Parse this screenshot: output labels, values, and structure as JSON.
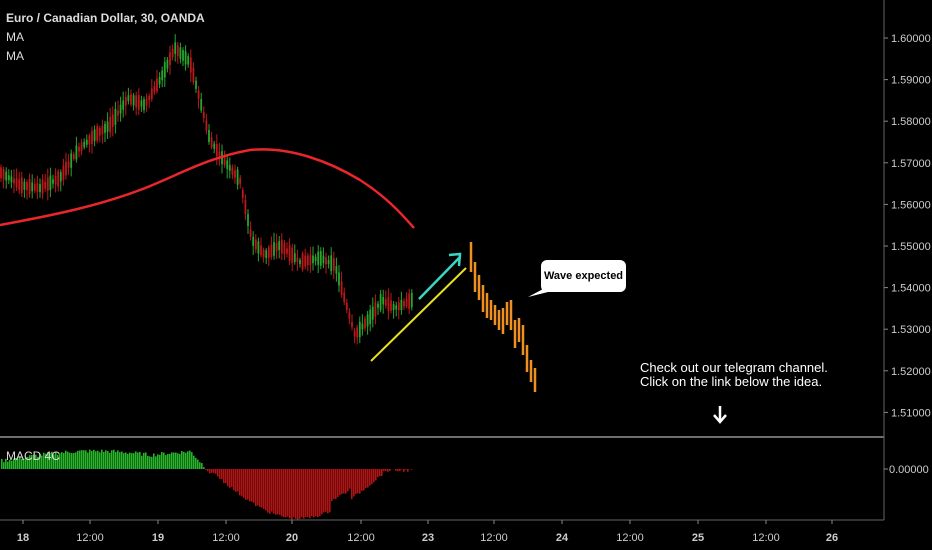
{
  "header": {
    "symbol": "Euro / Canadian Dollar, 30, OANDA",
    "indicator1": "MA",
    "indicator2": "MA"
  },
  "macd_label": "MACD 4C",
  "annotation_bubble": "Wave expected",
  "note": {
    "line1": "Check out our telegram channel.",
    "line2": "Click on the link below the idea."
  },
  "price_axis": [
    "1.60000",
    "1.59000",
    "1.58000",
    "1.57000",
    "1.56000",
    "1.55000",
    "1.54000",
    "1.53000",
    "1.52000",
    "1.51000"
  ],
  "macd_axis": "0.00000",
  "time_axis": [
    "18",
    "12:00",
    "19",
    "12:00",
    "20",
    "12:00",
    "23",
    "12:00",
    "24",
    "12:00",
    "25",
    "12:00",
    "26"
  ],
  "colors": {
    "up": "#26a82e",
    "down": "#c0171a",
    "ma": "#e8262c",
    "projection": "#f0901e",
    "trendline": "#e8e020",
    "arrow": "#3ad6c0",
    "macd_pos": "#28b52a",
    "macd_neg": "#b01414"
  }
}
